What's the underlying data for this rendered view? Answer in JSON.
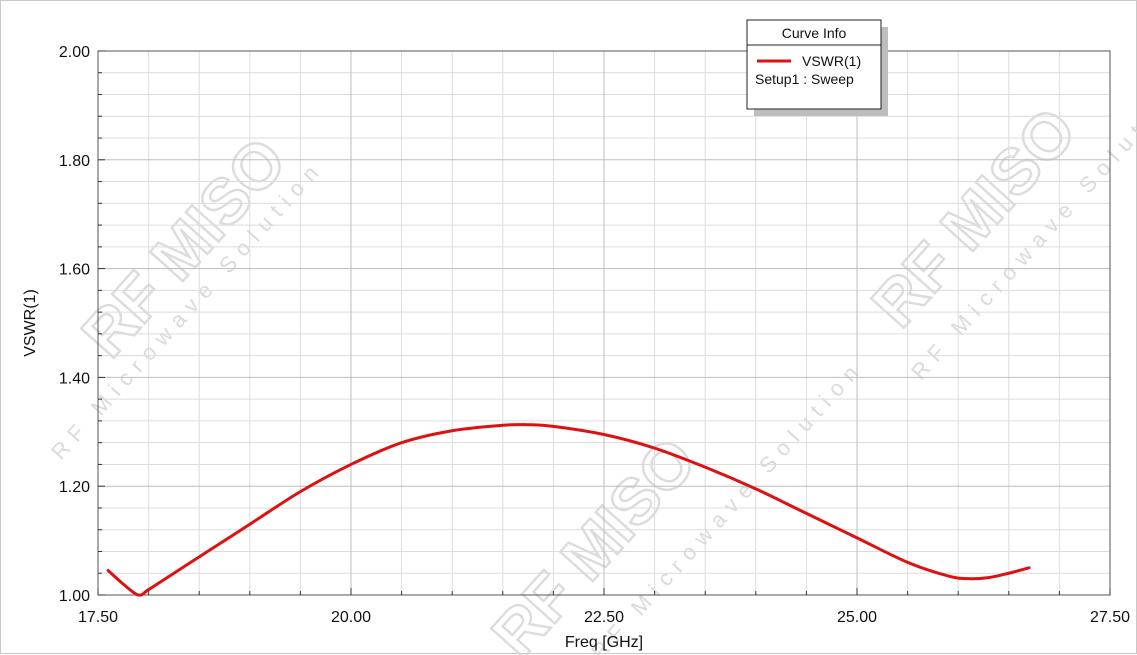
{
  "chart_data": {
    "type": "line",
    "title": "",
    "xlabel": "Freq [GHz]",
    "ylabel": "VSWR(1)",
    "xlim": [
      17.5,
      27.5
    ],
    "ylim": [
      1.0,
      2.0
    ],
    "x_tick_labels": [
      "17.50",
      "20.00",
      "22.50",
      "25.00",
      "27.50"
    ],
    "x_ticks": [
      17.5,
      20.0,
      22.5,
      25.0,
      27.5
    ],
    "y_tick_labels": [
      "1.00",
      "1.20",
      "1.40",
      "1.60",
      "1.80",
      "2.00"
    ],
    "y_ticks": [
      1.0,
      1.2,
      1.4,
      1.6,
      1.8,
      2.0
    ],
    "grid": true,
    "legend_position": "top-right",
    "legend": {
      "title": "Curve Info",
      "entry_label": "VSWR(1)",
      "entry_sublabel": "Setup1 : Sweep"
    },
    "series": [
      {
        "name": "VSWR(1)",
        "color": "#dd1111",
        "x": [
          17.6,
          17.75,
          17.9,
          18.0,
          18.25,
          18.5,
          19.0,
          19.5,
          20.0,
          20.5,
          21.0,
          21.5,
          21.75,
          22.0,
          22.5,
          23.0,
          23.5,
          24.0,
          24.5,
          25.0,
          25.5,
          25.9,
          26.1,
          26.3,
          26.5,
          26.7
        ],
        "y": [
          1.045,
          1.02,
          1.0,
          1.01,
          1.04,
          1.07,
          1.13,
          1.19,
          1.24,
          1.28,
          1.302,
          1.312,
          1.313,
          1.31,
          1.295,
          1.27,
          1.235,
          1.195,
          1.15,
          1.105,
          1.06,
          1.035,
          1.03,
          1.032,
          1.04,
          1.05
        ]
      }
    ]
  },
  "watermark": {
    "brand": "RF MISO",
    "tagline": "RF Microwave Solution"
  }
}
